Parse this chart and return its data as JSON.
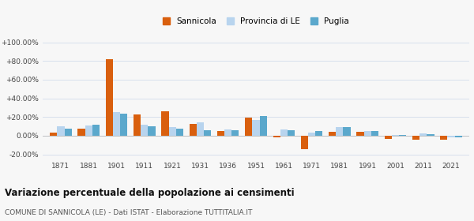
{
  "years": [
    1871,
    1881,
    1901,
    1911,
    1921,
    1931,
    1936,
    1951,
    1961,
    1971,
    1981,
    1991,
    2001,
    2011,
    2021
  ],
  "sannicola": [
    3.0,
    8.0,
    82.0,
    23.0,
    26.0,
    13.0,
    5.0,
    19.0,
    -1.5,
    -14.0,
    4.0,
    4.0,
    -3.0,
    -4.0,
    -4.0
  ],
  "provincia_le": [
    10.0,
    11.0,
    25.0,
    12.0,
    9.0,
    14.0,
    7.0,
    17.0,
    7.0,
    3.0,
    9.0,
    5.0,
    1.0,
    2.5,
    -2.0
  ],
  "puglia": [
    7.5,
    12.0,
    24.0,
    10.0,
    7.5,
    6.0,
    6.0,
    21.5,
    6.0,
    5.0,
    9.0,
    5.0,
    1.0,
    2.0,
    -2.0
  ],
  "color_sannicola": "#d95f0e",
  "color_provincia": "#b8d4ee",
  "color_puglia": "#5ba8cc",
  "title": "Variazione percentuale della popolazione ai censimenti",
  "subtitle": "COMUNE DI SANNICOLA (LE) - Dati ISTAT - Elaborazione TUTTITALIA.IT",
  "ylim": [
    -25,
    105
  ],
  "yticks": [
    -20,
    0,
    20,
    40,
    60,
    80,
    100
  ],
  "ytick_labels": [
    "-20.00%",
    "0.00%",
    "+20.00%",
    "+40.00%",
    "+60.00%",
    "+80.00%",
    "+100.00%"
  ],
  "background_color": "#f7f7f7",
  "grid_color": "#d8e0ec"
}
